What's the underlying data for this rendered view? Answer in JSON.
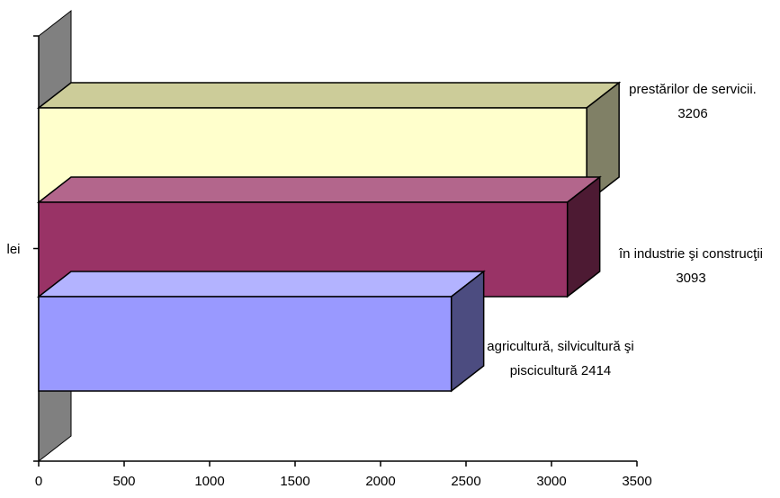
{
  "chart_data": {
    "type": "bar",
    "orientation": "horizontal",
    "three_d": true,
    "categories": [
      {
        "line1": "agricultură, silvicultură şi",
        "line2": "piscicultură 2414"
      },
      {
        "line1": "în industrie şi construcţii",
        "line2": "3093"
      },
      {
        "line1": "prestărilor de servicii.",
        "line2": "3206"
      }
    ],
    "values": [
      2414,
      3093,
      3206
    ],
    "colors": {
      "front": [
        "#9999ff",
        "#993366",
        "#ffffcc"
      ],
      "side": [
        "#4c4c80",
        "#4d1a33",
        "#808066"
      ],
      "top": [
        "#b3b3ff",
        "#b3668c",
        "#cccc99"
      ],
      "wall": "#808080"
    },
    "xlim": [
      0,
      3500
    ],
    "xticks": [
      0,
      500,
      1000,
      1500,
      2000,
      2500,
      3000,
      3500
    ],
    "ylabel": "lei",
    "grid": false,
    "legend": "none"
  }
}
